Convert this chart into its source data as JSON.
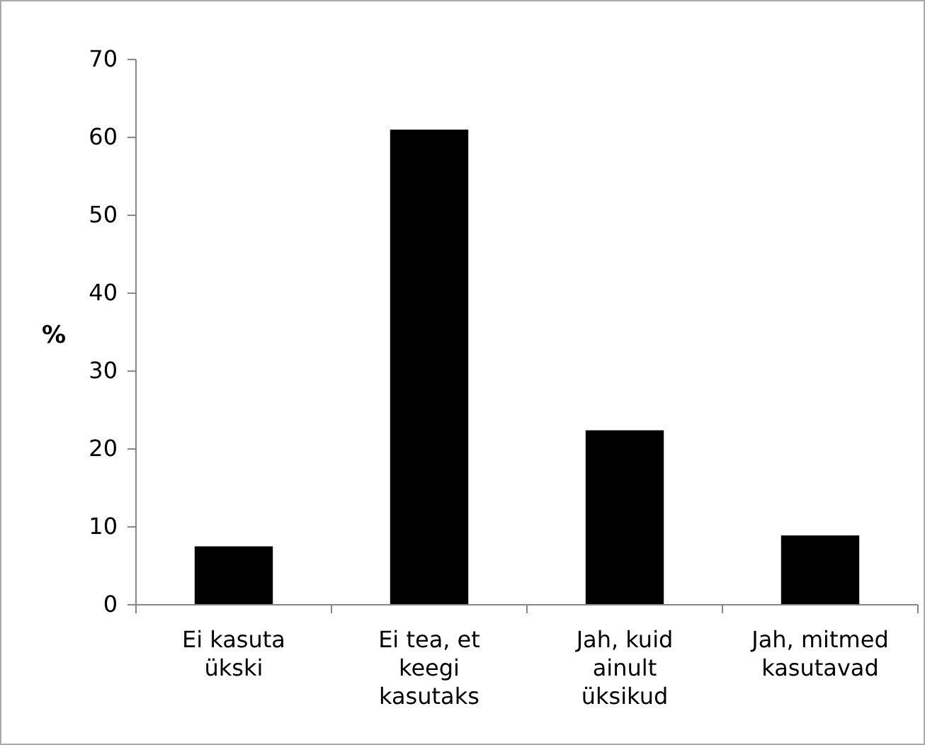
{
  "chart_data": {
    "type": "bar",
    "ylabel": "%",
    "categories": [
      "Ei kasuta ükski",
      "Ei tea, et keegi kasutaks",
      "Jah, kuid ainult üksikud",
      "Jah, mitmed kasutavad"
    ],
    "values": [
      7.5,
      61,
      22.4,
      8.9
    ],
    "color": "#000000",
    "ylim": [
      0,
      70
    ],
    "yticks": [
      0,
      10,
      20,
      30,
      40,
      50,
      60,
      70
    ],
    "grid": false
  }
}
